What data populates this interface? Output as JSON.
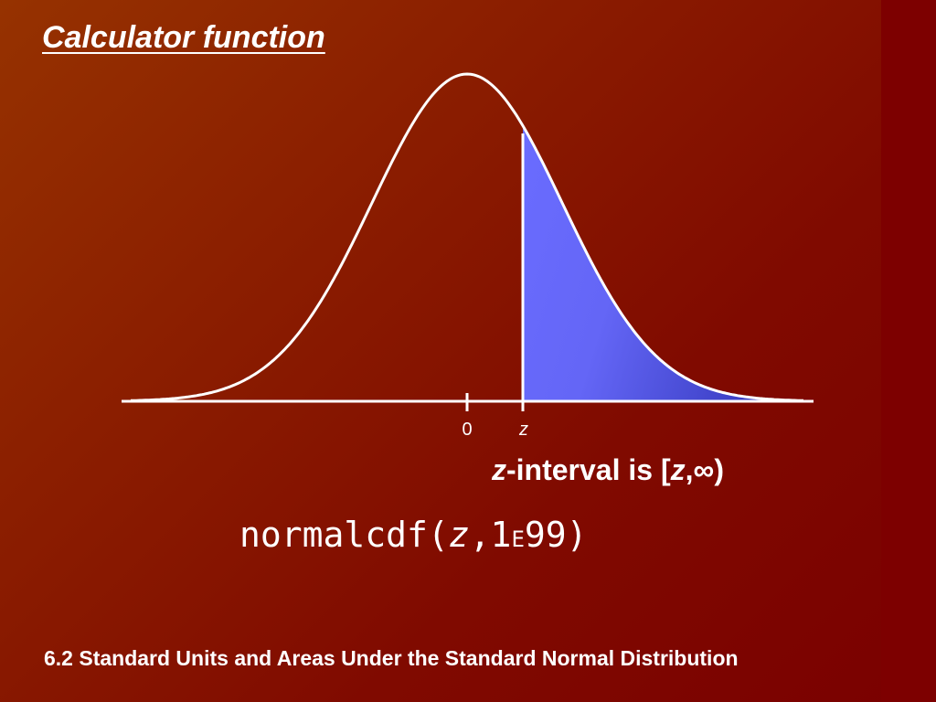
{
  "slide": {
    "title": "Calculator function",
    "footer": "6.2 Standard Units and Areas Under the Standard Normal Distribution"
  },
  "diagram": {
    "curve": "standard normal",
    "shaded_region": "right tail from z",
    "tick_labels": {
      "zero": "0",
      "z": "z"
    },
    "colors": {
      "curve": "#ffffff",
      "shade_light": "#6a6cff",
      "shade_dark": "#3b3fc4",
      "background": "#8a1c00"
    }
  },
  "interval": {
    "var": "z",
    "text1": "-interval is [",
    "var2": "z",
    "text2": ",∞)"
  },
  "command": {
    "func": "normalcdf(",
    "var": "z",
    "num": ",1",
    "e": "E",
    "rest": "99)"
  }
}
